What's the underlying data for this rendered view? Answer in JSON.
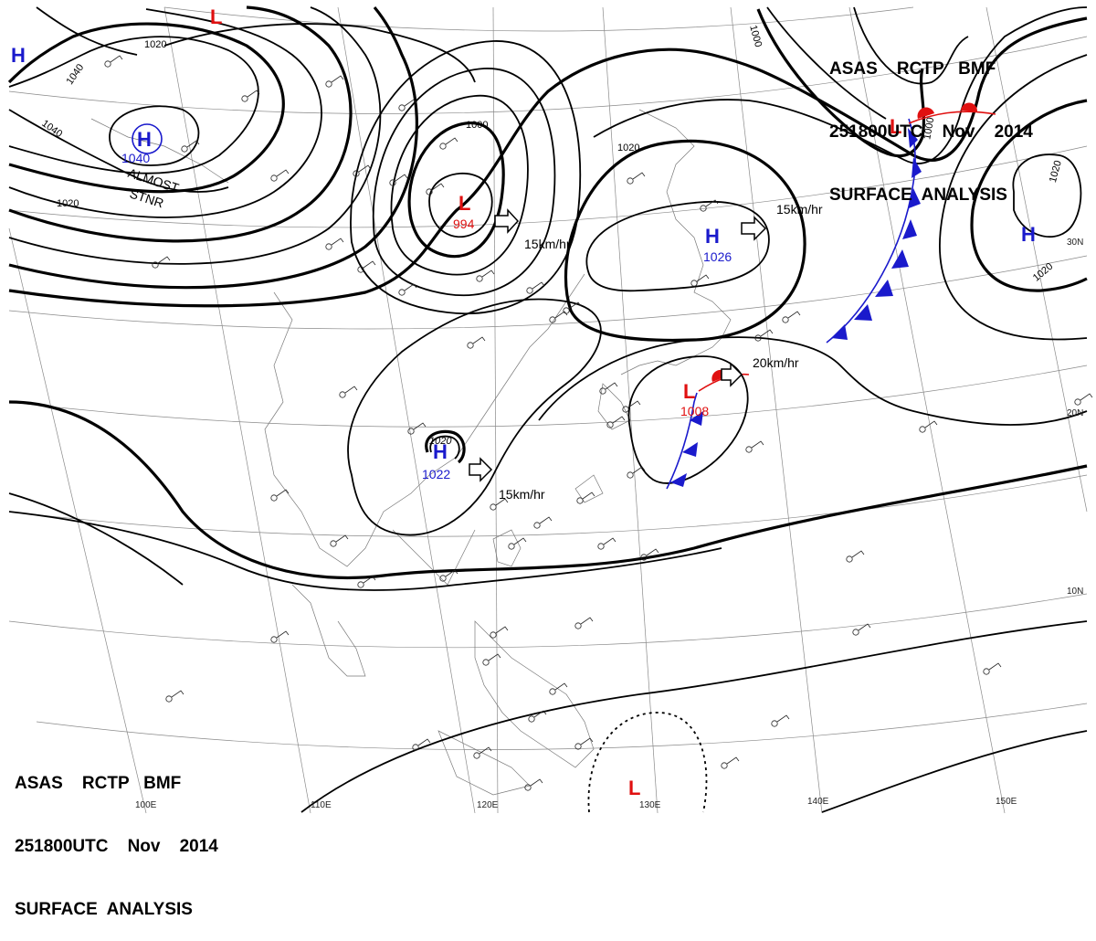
{
  "header": {
    "line1": "ASAS    RCTP   BMF",
    "line2": "251800UTC    Nov    2014",
    "line3": "SURFACE  ANALYSIS"
  },
  "pressure_centers": [
    {
      "type": "H",
      "value": "1040",
      "color": "#1a1acc"
    },
    {
      "type": "H",
      "value": "",
      "color": "#1a1acc"
    },
    {
      "type": "L",
      "value": "",
      "color": "#e01010"
    },
    {
      "type": "L",
      "value": "994",
      "color": "#e01010"
    },
    {
      "type": "H",
      "value": "1026",
      "color": "#1a1acc"
    },
    {
      "type": "L",
      "value": "",
      "color": "#e01010"
    },
    {
      "type": "H",
      "value": "",
      "color": "#1a1acc"
    },
    {
      "type": "L",
      "value": "1008",
      "color": "#e01010"
    },
    {
      "type": "H",
      "value": "1022",
      "color": "#1a1acc"
    },
    {
      "type": "L",
      "value": "",
      "color": "#e01010"
    }
  ],
  "isobar_labels": [
    "1020",
    "1040",
    "1040",
    "1020",
    "1000",
    "1020",
    "1000",
    "1000",
    "1020",
    "1020"
  ],
  "text_annotations": {
    "almost": "ALMOST",
    "stnr": "STNR"
  },
  "movement": [
    "15km/hr",
    "15km/hr",
    "20km/hr",
    "15km/hr"
  ],
  "lat_labels": [
    "30N",
    "20N",
    "10N"
  ],
  "lon_labels": [
    "100E",
    "110E",
    "120E",
    "130E",
    "140E",
    "150E"
  ],
  "colors": {
    "high": "#1a1acc",
    "low": "#e01010",
    "front_cold": "#1a1acc",
    "front_warm": "#e01010"
  }
}
